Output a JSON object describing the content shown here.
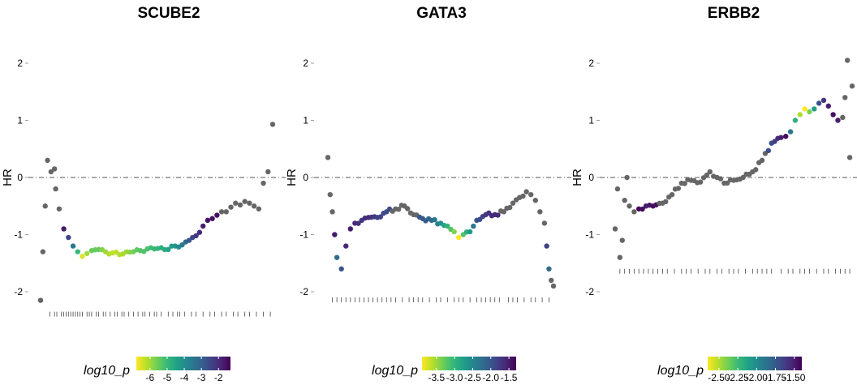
{
  "colors": {
    "na_point": "#666666",
    "refline": "#555555",
    "rug": "#444444",
    "viridis": [
      "#fde725",
      "#b5de2b",
      "#6ece58",
      "#35b779",
      "#1f9e89",
      "#26828e",
      "#31688e",
      "#3e4989",
      "#482878",
      "#440154"
    ]
  },
  "chart_data": [
    {
      "type": "scatter",
      "title": "SCUBE2",
      "ylabel": "HR",
      "ylim": [
        -2.3,
        2.4
      ],
      "y_ticks": [
        "-2",
        "-1",
        "0",
        "1",
        "2"
      ],
      "y_tick_values": [
        -2,
        -1,
        0,
        1,
        2
      ],
      "reference_line": 0,
      "grid": false,
      "x": [
        0,
        0.01,
        0.02,
        0.03,
        0.045,
        0.06,
        0.065,
        0.08,
        0.1,
        0.12,
        0.14,
        0.16,
        0.18,
        0.2,
        0.22,
        0.25,
        0.28,
        0.31,
        0.34,
        0.37,
        0.4,
        0.43,
        0.46,
        0.49,
        0.52,
        0.55,
        0.58,
        0.61,
        0.64,
        0.67,
        0.7,
        0.72,
        0.74,
        0.76,
        0.78,
        0.8,
        0.82,
        0.84,
        0.86,
        0.88,
        0.9,
        0.92,
        0.94,
        0.96,
        0.98,
        1.0
      ],
      "y": [
        -2.15,
        -1.3,
        -0.5,
        0.3,
        0.1,
        0.15,
        -0.2,
        -0.55,
        -0.9,
        -1.05,
        -1.2,
        -1.3,
        -1.38,
        -1.33,
        -1.28,
        -1.26,
        -1.3,
        -1.32,
        -1.35,
        -1.3,
        -1.3,
        -1.28,
        -1.25,
        -1.25,
        -1.23,
        -1.26,
        -1.2,
        -1.18,
        -1.1,
        -1.02,
        -0.85,
        -0.75,
        -0.72,
        -0.66,
        -0.6,
        -0.6,
        -0.52,
        -0.45,
        -0.48,
        -0.42,
        -0.45,
        -0.5,
        -0.55,
        -0.1,
        0.1,
        0.93
      ],
      "log10_p": [
        null,
        null,
        null,
        null,
        null,
        null,
        null,
        null,
        -1.7,
        -2.5,
        -3.5,
        -5.0,
        -6.5,
        -6.0,
        -5.5,
        -5.5,
        -6.0,
        -6.3,
        -6.2,
        -6.0,
        -5.6,
        -5.3,
        -5.2,
        -5.0,
        -4.8,
        -4.5,
        -4.2,
        -3.6,
        -2.8,
        -2.2,
        -1.7,
        -1.6,
        -1.55,
        -1.5,
        null,
        null,
        null,
        null,
        null,
        null,
        null,
        null,
        null,
        null,
        null,
        null
      ],
      "rug_x": [
        0.04,
        0.06,
        0.07,
        0.09,
        0.1,
        0.11,
        0.12,
        0.13,
        0.14,
        0.15,
        0.16,
        0.17,
        0.18,
        0.2,
        0.21,
        0.22,
        0.24,
        0.25,
        0.27,
        0.28,
        0.3,
        0.32,
        0.33,
        0.35,
        0.36,
        0.38,
        0.4,
        0.42,
        0.44,
        0.45,
        0.47,
        0.49,
        0.5,
        0.52,
        0.55,
        0.57,
        0.59,
        0.6,
        0.62,
        0.65,
        0.67,
        0.7,
        0.73,
        0.75,
        0.78,
        0.8,
        0.83,
        0.85,
        0.88,
        0.9,
        0.93,
        0.96,
        0.99
      ],
      "legend": {
        "title": "log10_p",
        "labels": [
          "-6",
          "-5",
          "-4",
          "-3",
          "-2"
        ],
        "values": [
          -6,
          -5,
          -4,
          -3,
          -2
        ],
        "range": [
          -6.8,
          -1.3
        ]
      }
    },
    {
      "type": "scatter",
      "title": "GATA3",
      "ylabel": "HR",
      "ylim": [
        -2.3,
        2.4
      ],
      "y_ticks": [
        "-2",
        "-1",
        "0",
        "1",
        "2"
      ],
      "y_tick_values": [
        -2,
        -1,
        0,
        1,
        2
      ],
      "reference_line": 0,
      "grid": false,
      "x": [
        0,
        0.01,
        0.02,
        0.03,
        0.04,
        0.06,
        0.08,
        0.1,
        0.12,
        0.15,
        0.18,
        0.22,
        0.26,
        0.3,
        0.34,
        0.38,
        0.42,
        0.46,
        0.5,
        0.53,
        0.56,
        0.58,
        0.6,
        0.63,
        0.66,
        0.7,
        0.74,
        0.78,
        0.82,
        0.85,
        0.88,
        0.9,
        0.92,
        0.94,
        0.96,
        0.97,
        0.98,
        0.99,
        1.0
      ],
      "y": [
        0.35,
        -0.3,
        -0.6,
        -1.0,
        -1.4,
        -1.6,
        -1.2,
        -0.9,
        -0.8,
        -0.75,
        -0.7,
        -0.7,
        -0.6,
        -0.55,
        -0.5,
        -0.65,
        -0.72,
        -0.75,
        -0.8,
        -0.85,
        -0.95,
        -1.05,
        -1.0,
        -0.95,
        -0.75,
        -0.65,
        -0.65,
        -0.6,
        -0.45,
        -0.35,
        -0.25,
        -0.3,
        -0.4,
        -0.6,
        -0.8,
        -1.2,
        -1.6,
        -1.8,
        -1.9
      ],
      "log10_p": [
        null,
        null,
        null,
        -1.5,
        -2.2,
        -2.0,
        -1.6,
        -1.5,
        -1.6,
        -1.7,
        -1.6,
        -1.8,
        -1.9,
        null,
        null,
        null,
        -2.0,
        -2.2,
        -2.6,
        -3.0,
        -3.4,
        -3.9,
        -3.2,
        -2.7,
        -2.0,
        -1.7,
        -1.6,
        null,
        null,
        null,
        null,
        null,
        null,
        null,
        null,
        -1.8,
        -2.2,
        null,
        null
      ],
      "rug_x": [
        0.02,
        0.04,
        0.06,
        0.08,
        0.1,
        0.12,
        0.14,
        0.16,
        0.18,
        0.2,
        0.22,
        0.24,
        0.26,
        0.28,
        0.3,
        0.33,
        0.36,
        0.38,
        0.4,
        0.42,
        0.45,
        0.48,
        0.5,
        0.53,
        0.56,
        0.58,
        0.6,
        0.63,
        0.66,
        0.68,
        0.7,
        0.72,
        0.74,
        0.76,
        0.8,
        0.82,
        0.84,
        0.87,
        0.9,
        0.92,
        0.95,
        0.98
      ],
      "legend": {
        "title": "log10_p",
        "labels": [
          "-3.5",
          "-3.0",
          "-2.5",
          "-2.0",
          "-1.5"
        ],
        "values": [
          -3.5,
          -3.0,
          -2.5,
          -2.0,
          -1.5
        ],
        "range": [
          -3.9,
          -1.3
        ]
      }
    },
    {
      "type": "scatter",
      "title": "ERBB2",
      "ylabel": "HR",
      "ylim": [
        -2.3,
        2.4
      ],
      "y_ticks": [
        "-2",
        "-1",
        "0",
        "1",
        "2"
      ],
      "y_tick_values": [
        -2,
        -1,
        0,
        1,
        2
      ],
      "reference_line": 0,
      "grid": false,
      "x": [
        0,
        0.01,
        0.02,
        0.03,
        0.04,
        0.05,
        0.06,
        0.08,
        0.1,
        0.13,
        0.16,
        0.2,
        0.24,
        0.28,
        0.32,
        0.36,
        0.4,
        0.43,
        0.46,
        0.5,
        0.54,
        0.58,
        0.62,
        0.66,
        0.7,
        0.72,
        0.74,
        0.76,
        0.78,
        0.8,
        0.82,
        0.84,
        0.86,
        0.88,
        0.9,
        0.92,
        0.94,
        0.96,
        0.97,
        0.98,
        0.99,
        1.0
      ],
      "y": [
        -0.9,
        -0.2,
        -1.4,
        -1.1,
        -0.4,
        0.0,
        -0.5,
        -0.6,
        -0.55,
        -0.5,
        -0.5,
        -0.45,
        -0.3,
        -0.1,
        -0.05,
        -0.08,
        0.1,
        0.0,
        -0.1,
        -0.05,
        0.0,
        0.1,
        0.3,
        0.6,
        0.7,
        0.72,
        0.8,
        1.0,
        1.1,
        1.2,
        1.15,
        1.2,
        1.3,
        1.35,
        1.25,
        1.1,
        1.0,
        1.05,
        1.4,
        2.05,
        0.35,
        1.6
      ],
      "log10_p": [
        null,
        null,
        null,
        null,
        null,
        null,
        null,
        null,
        -1.4,
        -1.5,
        -1.45,
        null,
        null,
        null,
        null,
        null,
        null,
        null,
        null,
        null,
        null,
        null,
        null,
        -1.7,
        -1.5,
        -1.45,
        -1.9,
        -2.2,
        -2.5,
        -2.65,
        -2.4,
        -2.1,
        -1.7,
        -1.6,
        -1.5,
        -1.45,
        -1.5,
        null,
        null,
        null,
        null,
        null
      ],
      "rug_x": [
        0.02,
        0.04,
        0.06,
        0.08,
        0.1,
        0.12,
        0.14,
        0.16,
        0.18,
        0.2,
        0.22,
        0.25,
        0.28,
        0.3,
        0.32,
        0.35,
        0.38,
        0.4,
        0.43,
        0.45,
        0.48,
        0.5,
        0.52,
        0.55,
        0.58,
        0.6,
        0.62,
        0.64,
        0.66,
        0.7,
        0.73,
        0.75,
        0.78,
        0.8,
        0.82,
        0.85,
        0.88,
        0.9,
        0.93,
        0.95,
        0.97,
        0.99
      ],
      "legend": {
        "title": "log10_p",
        "labels": [
          "-2.50",
          "-2.25",
          "-2.00",
          "-1.75",
          "-1.50"
        ],
        "values": [
          -2.5,
          -2.25,
          -2.0,
          -1.75,
          -1.5
        ],
        "range": [
          -2.65,
          -1.4
        ]
      }
    }
  ]
}
